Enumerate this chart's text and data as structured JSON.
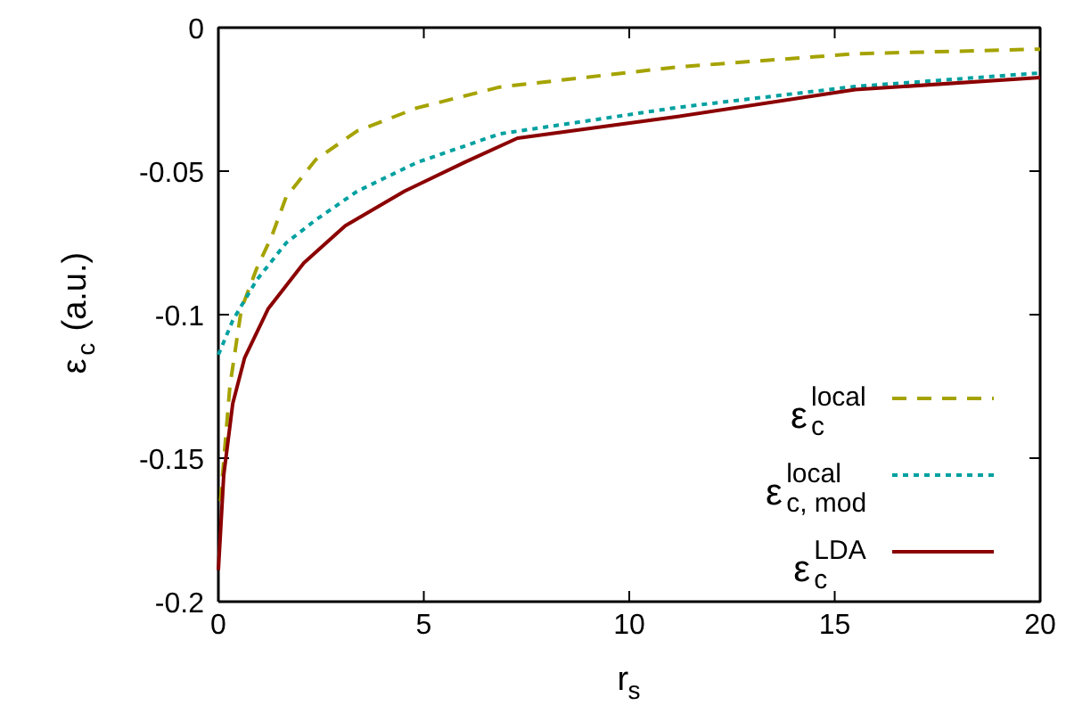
{
  "chart_data": {
    "type": "line",
    "xlabel": "r$_{s}$",
    "ylabel": "ε$_{c}$ (a.u.)",
    "xlim": [
      0,
      20
    ],
    "ylim": [
      -0.2,
      0
    ],
    "xticks": [
      0,
      5,
      10,
      15,
      20
    ],
    "yticks": [
      -0.2,
      -0.15,
      -0.1,
      -0.05,
      0
    ],
    "grid": false,
    "legend": "bottom right",
    "series": [
      {
        "name": "ε$_{c}$$^{local}$",
        "color": "#a5a300",
        "line_style": "dashed",
        "x": [
          0.05,
          0.28,
          0.56,
          0.93,
          1.29,
          1.65,
          2.37,
          3.38,
          4.83,
          6.85,
          11.18,
          15.5,
          20
        ],
        "values": [
          -0.165,
          -0.125,
          -0.098,
          -0.084,
          -0.073,
          -0.059,
          -0.046,
          -0.036,
          -0.028,
          -0.0207,
          -0.0137,
          -0.0091,
          -0.0075
        ]
      },
      {
        "name": "ε$_{c, mod}$$^{local}$",
        "color": "#00a0a0",
        "line_style": "dotted",
        "x": [
          0,
          0.35,
          0.93,
          1.65,
          2.37,
          3.38,
          4.83,
          6.85,
          11.18,
          15.5,
          20
        ],
        "values": [
          -0.114,
          -0.102,
          -0.088,
          -0.075,
          -0.067,
          -0.057,
          -0.047,
          -0.037,
          -0.0278,
          -0.0205,
          -0.0158
        ]
      },
      {
        "name": "ε$_{c}$$^{LDA}$",
        "color": "#8b0000",
        "line_style": "solid",
        "x": [
          0,
          0.13,
          0.35,
          0.64,
          1.21,
          2.08,
          3.09,
          4.53,
          5.98,
          7.28,
          11.18,
          15.5,
          20
        ],
        "values": [
          -0.189,
          -0.156,
          -0.131,
          -0.115,
          -0.098,
          -0.082,
          -0.069,
          -0.057,
          -0.047,
          -0.0385,
          -0.031,
          -0.0216,
          -0.0174
        ]
      }
    ]
  }
}
